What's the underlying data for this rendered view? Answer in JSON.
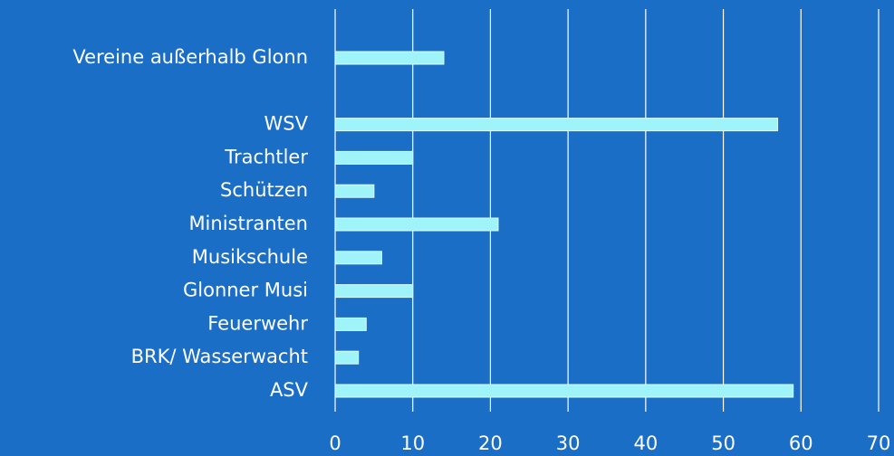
{
  "chart_data": {
    "type": "bar",
    "orientation": "horizontal",
    "categories": [
      "Vereine außerhalb Glonn",
      null,
      "WSV",
      "Trachtler",
      "Schützen",
      "Ministranten",
      "Musikschule",
      "Glonner Musi",
      "Feuerwehr",
      "BRK/ Wasserwacht",
      "ASV"
    ],
    "values": [
      14,
      null,
      57,
      10,
      5,
      21,
      6,
      10,
      4,
      3,
      59
    ],
    "color": "#9ff4fa",
    "xlim": [
      0,
      70
    ],
    "xticks": [
      0,
      10,
      20,
      30,
      40,
      50,
      60,
      70
    ],
    "grid": true
  }
}
